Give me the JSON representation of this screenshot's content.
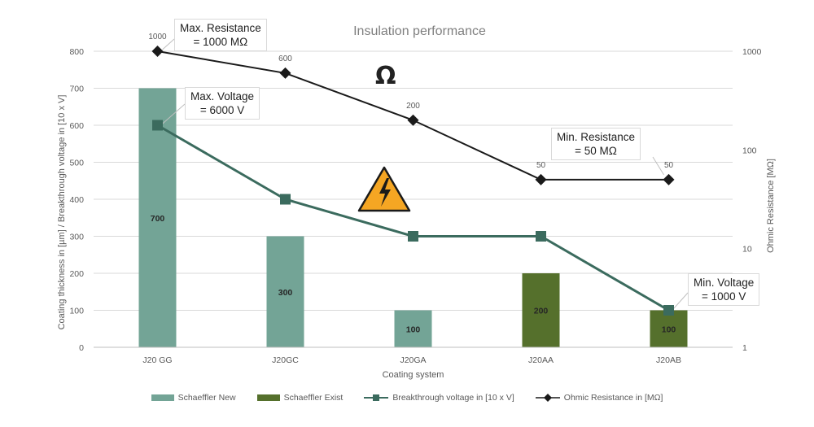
{
  "chart_data": {
    "type": "bar",
    "title": "Insulation performance",
    "xlabel": "Coating system",
    "ylabel": "Coating thickness in [µm] / Breakthrough voltage in [10 x V]",
    "y2label": "Ohmic Resistance [MΩ]",
    "categories": [
      "J20 GG",
      "J20GC",
      "J20GA",
      "J20AA",
      "J20AB"
    ],
    "ylim": [
      0,
      800
    ],
    "yticks": [
      0,
      100,
      200,
      300,
      400,
      500,
      600,
      700,
      800
    ],
    "y2scale": "log",
    "y2lim": [
      1,
      1000
    ],
    "y2ticks": [
      1,
      10,
      100,
      1000
    ],
    "grid": true,
    "legend_position": "bottom",
    "series": [
      {
        "name": "Schaeffler New",
        "kind": "bar",
        "color": "#73a496",
        "values": [
          700,
          300,
          100,
          null,
          null
        ],
        "labels": [
          "700",
          "300",
          "100",
          "",
          ""
        ]
      },
      {
        "name": "Schaeffler Exist",
        "kind": "bar",
        "color": "#55702c",
        "values": [
          null,
          null,
          null,
          200,
          100
        ],
        "labels": [
          "",
          "",
          "",
          "200",
          "100"
        ]
      },
      {
        "name": "Breakthrough voltage in [10 x V]",
        "kind": "line",
        "marker": "square",
        "color": "#3b6b5e",
        "values": [
          600,
          400,
          300,
          300,
          100
        ]
      },
      {
        "name": "Ohmic Resistance in [MΩ]",
        "kind": "line",
        "marker": "diamond",
        "color": "#1a1a1a",
        "axis": "right",
        "values": [
          1000,
          600,
          200,
          50,
          50
        ],
        "labels": [
          "1000",
          "600",
          "200",
          "50",
          "50"
        ]
      }
    ],
    "annotations": [
      {
        "id": "max_res",
        "text": [
          "Max. Resistance",
          "= 1000 MΩ"
        ]
      },
      {
        "id": "max_volt",
        "text": [
          "Max. Voltage",
          "= 6000 V"
        ]
      },
      {
        "id": "min_res",
        "text": [
          "Min. Resistance",
          "= 50 MΩ"
        ]
      },
      {
        "id": "min_volt",
        "text": [
          "Min. Voltage",
          "= 1000 V"
        ]
      }
    ],
    "symbols": {
      "omega": "Ω",
      "warning": "high-voltage-warning-icon"
    }
  }
}
